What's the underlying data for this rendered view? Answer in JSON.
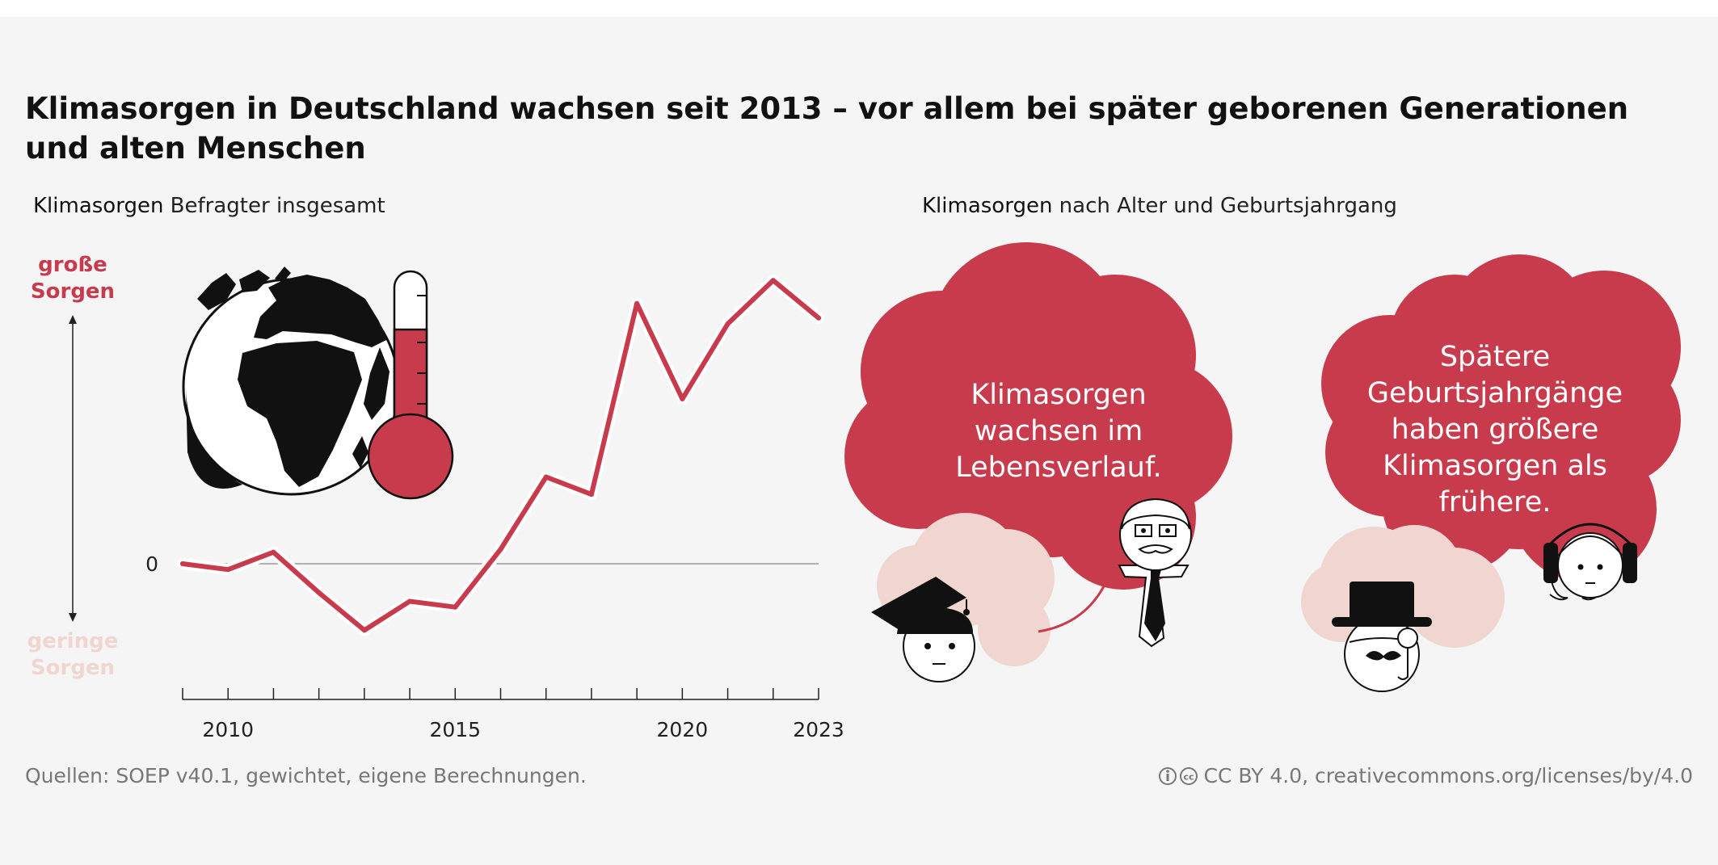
{
  "title": "Klimasorgen in Deutschland wachsen seit 2013 – vor allem bei später geborenen Generationen und alten Menschen",
  "left_panel": {
    "subtitle_bold": "Klimasorgen",
    "subtitle_rest": " Befragter insgesamt"
  },
  "right_panel": {
    "subtitle_bold": "Klimasorgen",
    "subtitle_rest": " nach Alter und Geburtsjahrgang",
    "cloud1_lines": [
      "Klimasorgen",
      "wachsen im",
      "Lebensverlauf."
    ],
    "cloud2_lines": [
      "Spätere",
      "Geburtsjahrgänge",
      "haben größere",
      "Klimasorgen als",
      "frühere."
    ]
  },
  "axis": {
    "y_top_line1": "große",
    "y_top_line2": "Sorgen",
    "y_bottom_line1": "geringe",
    "y_bottom_line2": "Sorgen",
    "zero_label": "0"
  },
  "source": "Quellen: SOEP v40.1, gewichtet, eigene Berechnungen.",
  "license": "CC BY 4.0, creativecommons.org/licenses/by/4.0",
  "colors": {
    "accent": "#c83b4c",
    "light": "#f0d5d0",
    "background": "#f5f5f5"
  },
  "icons": [
    "globe-icon",
    "thermometer-icon",
    "graduate-icon",
    "older-man-icon",
    "top-hat-man-icon",
    "headphones-girl-icon",
    "arrow-icon"
  ],
  "chart_data": {
    "type": "line",
    "x": [
      2009,
      2010,
      2011,
      2012,
      2013,
      2014,
      2015,
      2016,
      2017,
      2018,
      2019,
      2020,
      2021,
      2022,
      2023
    ],
    "series": [
      {
        "values": [
          0.0,
          -0.02,
          0.04,
          -0.1,
          -0.23,
          -0.13,
          -0.15,
          0.05,
          0.3,
          0.24,
          0.9,
          0.57,
          0.83,
          0.98,
          0.85
        ]
      }
    ],
    "xticks": [
      2010,
      2015,
      2020,
      2023
    ],
    "xlim": [
      2009,
      2023
    ],
    "ylim": [
      -0.45,
      1.0
    ],
    "grid": false,
    "legend": "none"
  }
}
